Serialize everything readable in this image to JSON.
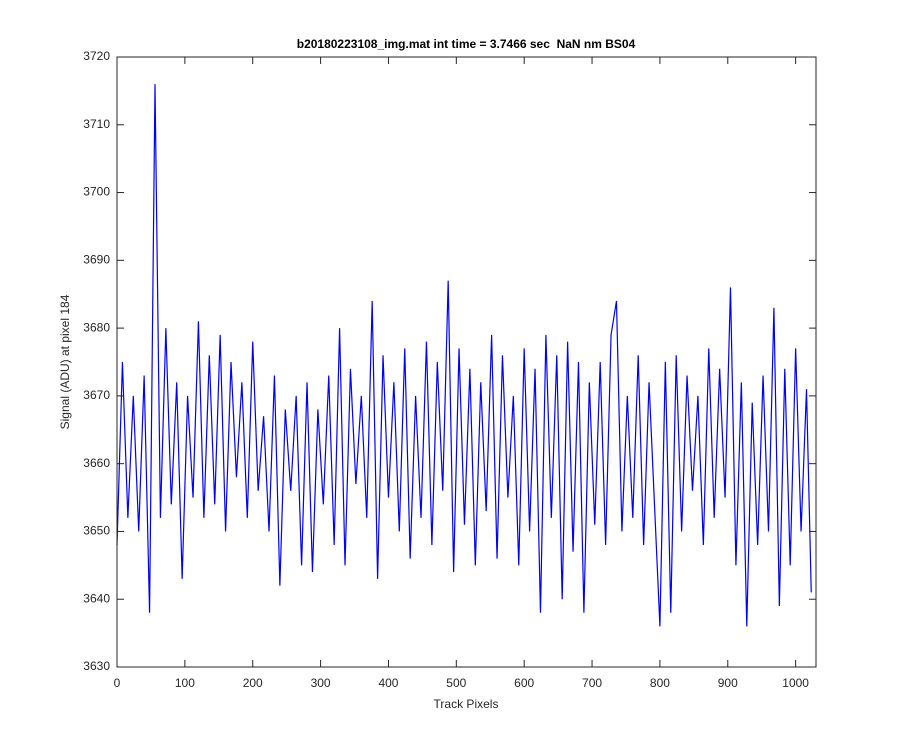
{
  "chart_data": {
    "type": "line",
    "title": "b20180223108_img.mat int time = 3.7466 sec  NaN nm BS04",
    "x_label": "Track Pixels",
    "y_label": "Signal (ADU) at pixel 184",
    "x": [
      0,
      8,
      16,
      24,
      32,
      40,
      48,
      56,
      64,
      72,
      80,
      88,
      96,
      104,
      112,
      120,
      128,
      136,
      144,
      152,
      160,
      168,
      176,
      184,
      192,
      200,
      208,
      216,
      224,
      232,
      240,
      248,
      256,
      264,
      272,
      280,
      288,
      296,
      304,
      312,
      320,
      328,
      336,
      344,
      352,
      360,
      368,
      376,
      384,
      392,
      400,
      408,
      416,
      424,
      432,
      440,
      448,
      456,
      464,
      472,
      480,
      488,
      496,
      504,
      512,
      520,
      528,
      536,
      544,
      552,
      560,
      568,
      576,
      584,
      592,
      600,
      608,
      616,
      624,
      632,
      640,
      648,
      656,
      664,
      672,
      680,
      688,
      696,
      704,
      712,
      720,
      728,
      736,
      744,
      752,
      760,
      768,
      776,
      784,
      792,
      800,
      808,
      816,
      824,
      832,
      840,
      848,
      856,
      864,
      872,
      880,
      888,
      896,
      904,
      912,
      920,
      928,
      936,
      944,
      952,
      960,
      968,
      976,
      984,
      992,
      1000,
      1008,
      1016,
      1023
    ],
    "series": [
      {
        "name": "signal",
        "color": "#0000ff",
        "values": [
          3648,
          3675,
          3652,
          3670,
          3650,
          3673,
          3638,
          3716,
          3652,
          3680,
          3654,
          3672,
          3643,
          3670,
          3655,
          3681,
          3652,
          3676,
          3654,
          3679,
          3650,
          3675,
          3658,
          3672,
          3652,
          3678,
          3656,
          3667,
          3650,
          3673,
          3642,
          3668,
          3656,
          3670,
          3645,
          3672,
          3644,
          3668,
          3654,
          3673,
          3648,
          3680,
          3645,
          3674,
          3657,
          3670,
          3652,
          3684,
          3643,
          3676,
          3655,
          3672,
          3650,
          3677,
          3646,
          3670,
          3652,
          3678,
          3648,
          3675,
          3656,
          3687,
          3644,
          3677,
          3651,
          3674,
          3645,
          3672,
          3653,
          3679,
          3646,
          3676,
          3655,
          3670,
          3645,
          3677,
          3650,
          3674,
          3638,
          3679,
          3652,
          3676,
          3640,
          3678,
          3647,
          3675,
          3638,
          3672,
          3651,
          3675,
          3648,
          3679,
          3684,
          3650,
          3670,
          3652,
          3676,
          3648,
          3672,
          3654,
          3636,
          3675,
          3638,
          3676,
          3650,
          3673,
          3656,
          3670,
          3648,
          3677,
          3652,
          3674,
          3655,
          3686,
          3645,
          3672,
          3636,
          3669,
          3648,
          3673,
          3650,
          3683,
          3639,
          3674,
          3645,
          3677,
          3650,
          3671,
          3641
        ]
      }
    ],
    "xlim": [
      0,
      1030
    ],
    "ylim": [
      3630,
      3720
    ],
    "xticks": [
      0,
      100,
      200,
      300,
      400,
      500,
      600,
      700,
      800,
      900,
      1000
    ],
    "yticks": [
      3630,
      3640,
      3650,
      3660,
      3670,
      3680,
      3690,
      3700,
      3710,
      3720
    ]
  }
}
